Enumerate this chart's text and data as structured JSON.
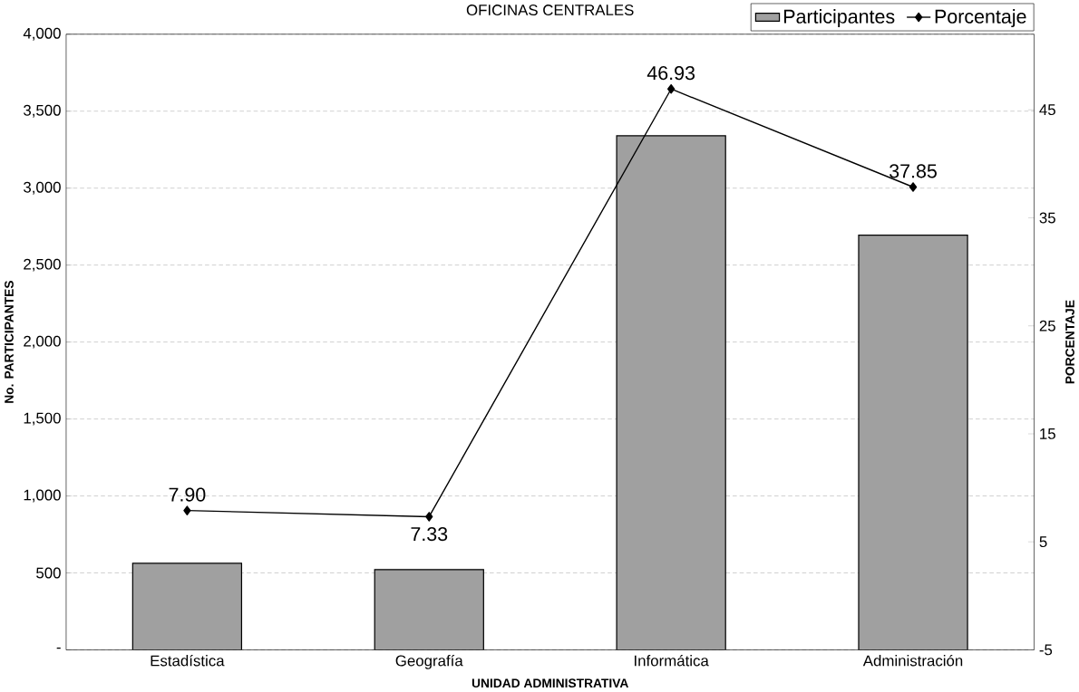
{
  "chart_data": {
    "type": "bar",
    "title": "OFICINAS CENTRALES",
    "xlabel": "UNIDAD ADMINISTRATIVA",
    "ylabel": "No. PARTICIPANTES",
    "y2label": "PORCENTAJE",
    "categories": [
      "Estadística",
      "Geografía",
      "Informática",
      "Administración"
    ],
    "series": [
      {
        "name": "Participantes",
        "color": "#a0a0a0",
        "values": [
          562,
          522,
          3340,
          2694
        ]
      },
      {
        "name": "Porcentaje",
        "type": "line",
        "axis": "y2",
        "color": "#000000",
        "values": [
          7.9,
          7.33,
          46.93,
          37.85
        ],
        "value_labels": [
          "7.90",
          "7.33",
          "46.93",
          "37.85"
        ]
      }
    ],
    "ylim": [
      0,
      4000
    ],
    "yticks": [
      {
        "value": 0,
        "label": "-"
      },
      500,
      {
        "value": 1000,
        "label": "1,000"
      },
      {
        "value": 1500,
        "label": "1,500"
      },
      {
        "value": 2000,
        "label": "2,000"
      },
      {
        "value": 2500,
        "label": "2,500"
      },
      {
        "value": 3000,
        "label": "3,000"
      },
      {
        "value": 3500,
        "label": "3,500"
      },
      {
        "value": 4000,
        "label": "4,000"
      }
    ],
    "y2lim": [
      -5,
      52
    ],
    "y2ticks": [
      -5,
      5,
      15,
      25,
      35,
      45
    ],
    "grid": "y",
    "legend": "top right",
    "marker": "diamond",
    "line_style": "solid"
  }
}
